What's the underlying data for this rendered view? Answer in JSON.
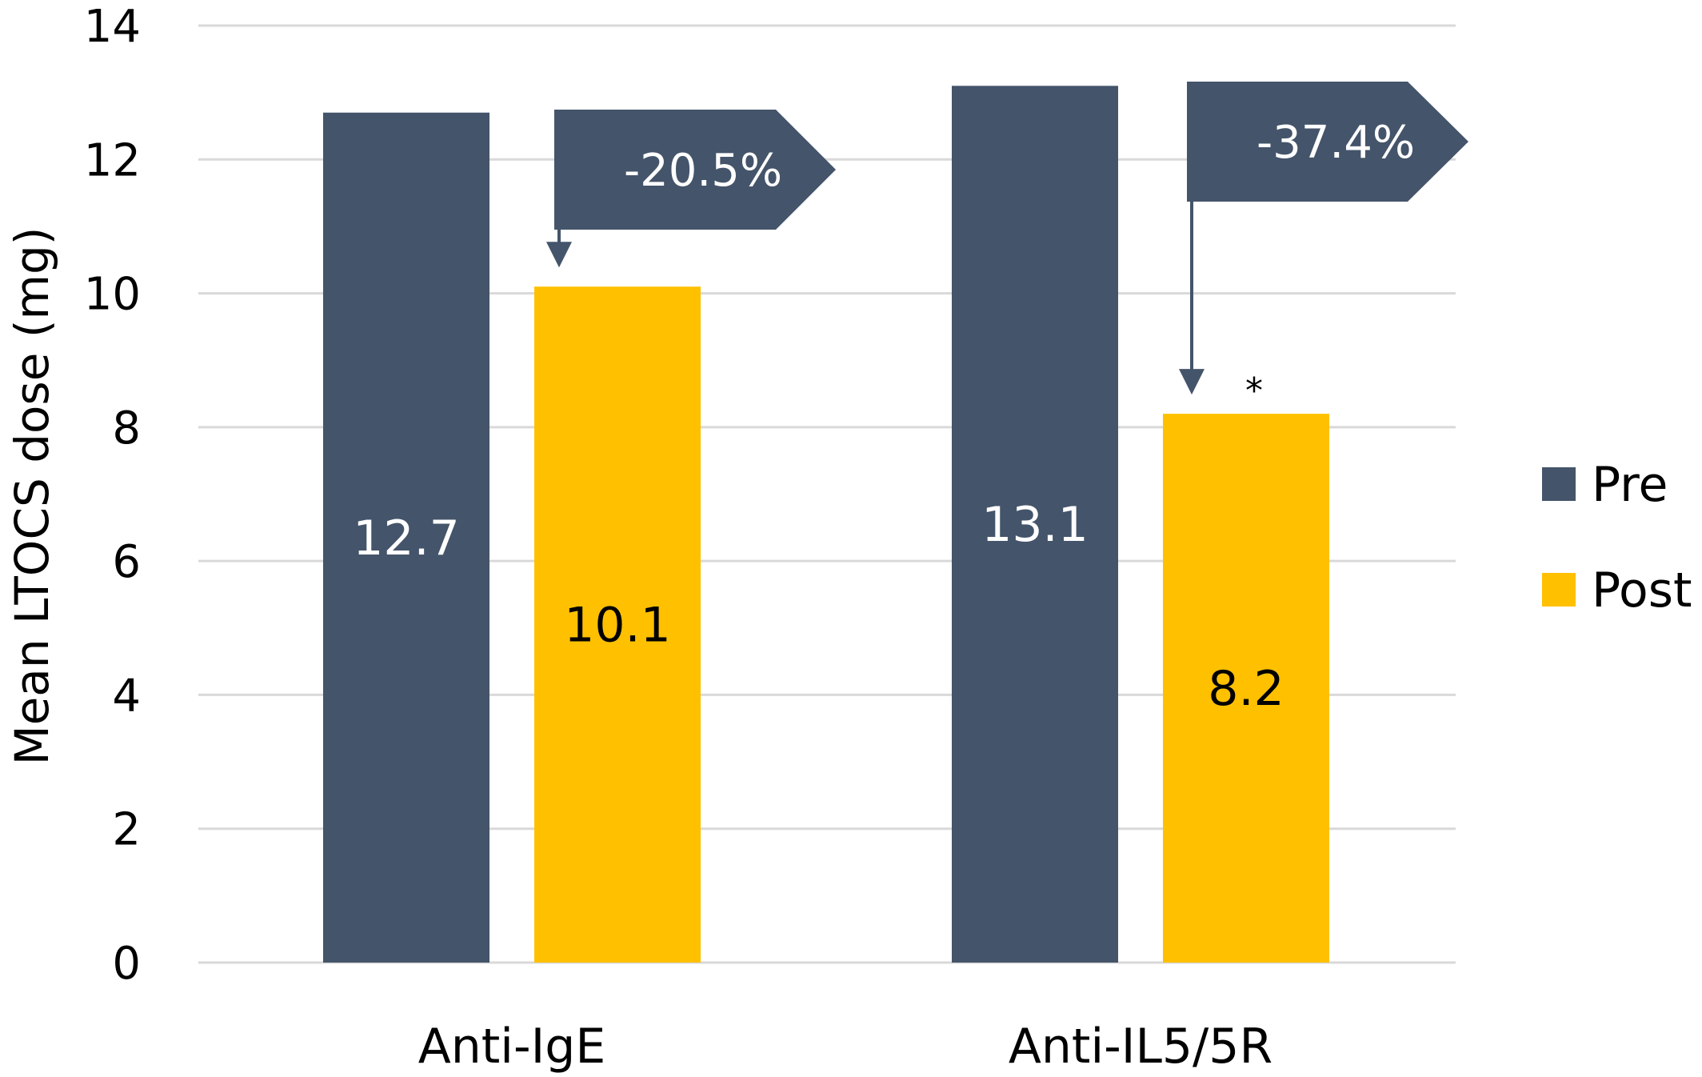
{
  "chart_data": {
    "type": "bar",
    "title": "",
    "xlabel": "",
    "ylabel": "Mean LTOCS dose (mg)",
    "ylim": [
      0,
      14
    ],
    "yticks": [
      0,
      2,
      4,
      6,
      8,
      10,
      12,
      14
    ],
    "grid": true,
    "legend_position": "right",
    "categories": [
      "Anti-IgE",
      "Anti-IL5/5R"
    ],
    "series": [
      {
        "name": "Pre",
        "color": "#44546a",
        "label_color": "#ffffff",
        "values": [
          12.7,
          13.1
        ],
        "labels": [
          "12.7",
          "13.1"
        ]
      },
      {
        "name": "Post",
        "color": "#ffc000",
        "label_color": "#000000",
        "values": [
          10.1,
          8.2
        ],
        "labels": [
          "10.1",
          "8.2"
        ]
      }
    ],
    "annotations": [
      {
        "category": "Anti-IgE",
        "text": "-20.5%",
        "type": "percent-change-callout"
      },
      {
        "category": "Anti-IL5/5R",
        "text": "-37.4%",
        "type": "percent-change-callout"
      }
    ],
    "significance": [
      {
        "category": "Anti-IL5/5R",
        "series": "Post",
        "marker": "*"
      }
    ]
  },
  "colors": {
    "gridline": "#d9d9d9",
    "callout": "#44546a"
  }
}
